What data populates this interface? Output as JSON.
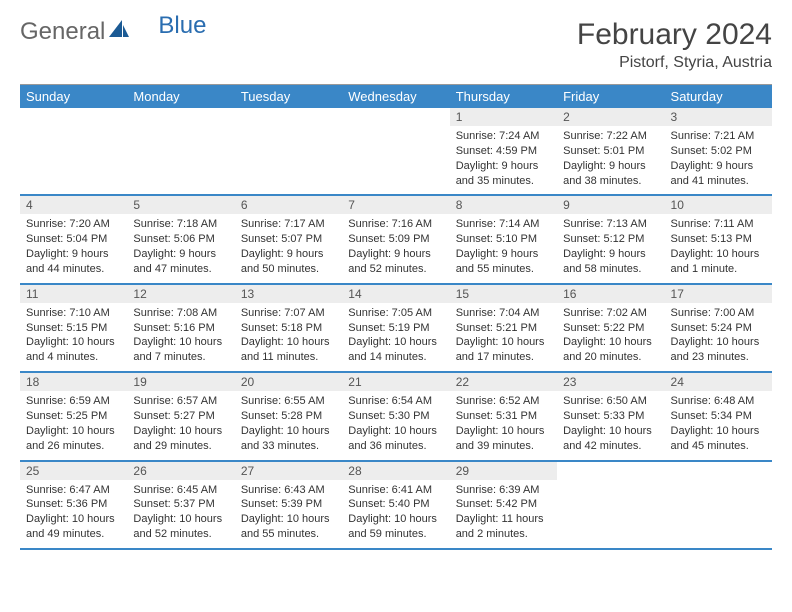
{
  "logo": {
    "text1": "General",
    "text2": "Blue",
    "color1": "#666666",
    "color2": "#2a6db0",
    "sail_color": "#1b5a94"
  },
  "title": "February 2024",
  "location": "Pistorf, Styria, Austria",
  "header_bg": "#3a87c7",
  "daynum_bg": "#ededed",
  "row_border": "#3a87c7",
  "weekdays": [
    "Sunday",
    "Monday",
    "Tuesday",
    "Wednesday",
    "Thursday",
    "Friday",
    "Saturday"
  ],
  "first_weekday_index": 4,
  "days": [
    {
      "n": "1",
      "sunrise": "7:24 AM",
      "sunset": "4:59 PM",
      "daylight": "9 hours and 35 minutes."
    },
    {
      "n": "2",
      "sunrise": "7:22 AM",
      "sunset": "5:01 PM",
      "daylight": "9 hours and 38 minutes."
    },
    {
      "n": "3",
      "sunrise": "7:21 AM",
      "sunset": "5:02 PM",
      "daylight": "9 hours and 41 minutes."
    },
    {
      "n": "4",
      "sunrise": "7:20 AM",
      "sunset": "5:04 PM",
      "daylight": "9 hours and 44 minutes."
    },
    {
      "n": "5",
      "sunrise": "7:18 AM",
      "sunset": "5:06 PM",
      "daylight": "9 hours and 47 minutes."
    },
    {
      "n": "6",
      "sunrise": "7:17 AM",
      "sunset": "5:07 PM",
      "daylight": "9 hours and 50 minutes."
    },
    {
      "n": "7",
      "sunrise": "7:16 AM",
      "sunset": "5:09 PM",
      "daylight": "9 hours and 52 minutes."
    },
    {
      "n": "8",
      "sunrise": "7:14 AM",
      "sunset": "5:10 PM",
      "daylight": "9 hours and 55 minutes."
    },
    {
      "n": "9",
      "sunrise": "7:13 AM",
      "sunset": "5:12 PM",
      "daylight": "9 hours and 58 minutes."
    },
    {
      "n": "10",
      "sunrise": "7:11 AM",
      "sunset": "5:13 PM",
      "daylight": "10 hours and 1 minute."
    },
    {
      "n": "11",
      "sunrise": "7:10 AM",
      "sunset": "5:15 PM",
      "daylight": "10 hours and 4 minutes."
    },
    {
      "n": "12",
      "sunrise": "7:08 AM",
      "sunset": "5:16 PM",
      "daylight": "10 hours and 7 minutes."
    },
    {
      "n": "13",
      "sunrise": "7:07 AM",
      "sunset": "5:18 PM",
      "daylight": "10 hours and 11 minutes."
    },
    {
      "n": "14",
      "sunrise": "7:05 AM",
      "sunset": "5:19 PM",
      "daylight": "10 hours and 14 minutes."
    },
    {
      "n": "15",
      "sunrise": "7:04 AM",
      "sunset": "5:21 PM",
      "daylight": "10 hours and 17 minutes."
    },
    {
      "n": "16",
      "sunrise": "7:02 AM",
      "sunset": "5:22 PM",
      "daylight": "10 hours and 20 minutes."
    },
    {
      "n": "17",
      "sunrise": "7:00 AM",
      "sunset": "5:24 PM",
      "daylight": "10 hours and 23 minutes."
    },
    {
      "n": "18",
      "sunrise": "6:59 AM",
      "sunset": "5:25 PM",
      "daylight": "10 hours and 26 minutes."
    },
    {
      "n": "19",
      "sunrise": "6:57 AM",
      "sunset": "5:27 PM",
      "daylight": "10 hours and 29 minutes."
    },
    {
      "n": "20",
      "sunrise": "6:55 AM",
      "sunset": "5:28 PM",
      "daylight": "10 hours and 33 minutes."
    },
    {
      "n": "21",
      "sunrise": "6:54 AM",
      "sunset": "5:30 PM",
      "daylight": "10 hours and 36 minutes."
    },
    {
      "n": "22",
      "sunrise": "6:52 AM",
      "sunset": "5:31 PM",
      "daylight": "10 hours and 39 minutes."
    },
    {
      "n": "23",
      "sunrise": "6:50 AM",
      "sunset": "5:33 PM",
      "daylight": "10 hours and 42 minutes."
    },
    {
      "n": "24",
      "sunrise": "6:48 AM",
      "sunset": "5:34 PM",
      "daylight": "10 hours and 45 minutes."
    },
    {
      "n": "25",
      "sunrise": "6:47 AM",
      "sunset": "5:36 PM",
      "daylight": "10 hours and 49 minutes."
    },
    {
      "n": "26",
      "sunrise": "6:45 AM",
      "sunset": "5:37 PM",
      "daylight": "10 hours and 52 minutes."
    },
    {
      "n": "27",
      "sunrise": "6:43 AM",
      "sunset": "5:39 PM",
      "daylight": "10 hours and 55 minutes."
    },
    {
      "n": "28",
      "sunrise": "6:41 AM",
      "sunset": "5:40 PM",
      "daylight": "10 hours and 59 minutes."
    },
    {
      "n": "29",
      "sunrise": "6:39 AM",
      "sunset": "5:42 PM",
      "daylight": "11 hours and 2 minutes."
    }
  ],
  "labels": {
    "sunrise": "Sunrise: ",
    "sunset": "Sunset: ",
    "daylight": "Daylight: "
  }
}
